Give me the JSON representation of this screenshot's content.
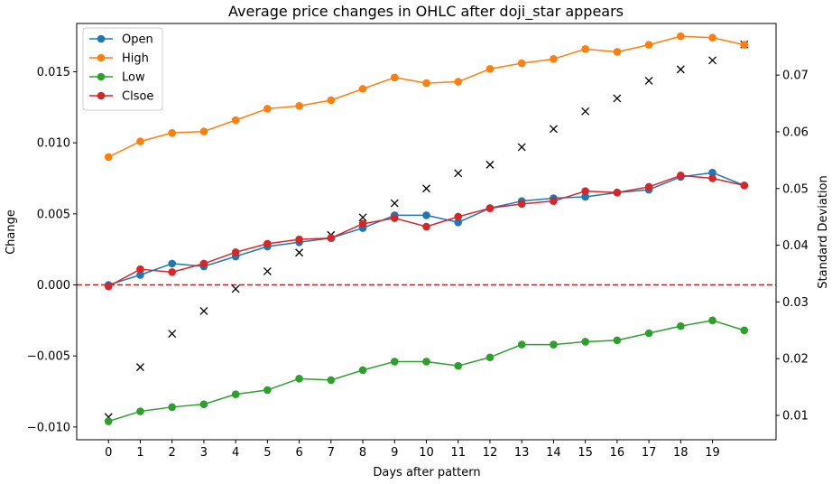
{
  "chart_data": {
    "type": "line",
    "title": "Average price changes in OHLC after doji_star appears",
    "xlabel": "Days after pattern",
    "ylabel": "Change",
    "y2label": "Standard Deviation",
    "x": [
      0,
      1,
      2,
      3,
      4,
      5,
      6,
      7,
      8,
      9,
      10,
      11,
      12,
      13,
      14,
      15,
      16,
      17,
      18,
      19,
      20
    ],
    "x_tick_labels": [
      "0",
      "1",
      "2",
      "3",
      "4",
      "5",
      "6",
      "7",
      "8",
      "9",
      "10",
      "11",
      "12",
      "13",
      "14",
      "15",
      "16",
      "17",
      "18",
      "19"
    ],
    "xlim": [
      -1,
      21
    ],
    "ylim": [
      -0.0109,
      0.0184
    ],
    "y_ticks": [
      "−0.010",
      "−0.005",
      "0.000",
      "0.005",
      "0.010",
      "0.015"
    ],
    "y2lim": [
      0.0057,
      0.0791
    ],
    "y2_ticks": [
      "0.01",
      "0.02",
      "0.03",
      "0.04",
      "0.05",
      "0.06",
      "0.07"
    ],
    "legend_position": "top-left",
    "grid": false,
    "zero_line": {
      "value": 0,
      "color": "#ff0000",
      "style": "dashed"
    },
    "series": [
      {
        "name": "Open",
        "color": "#1f77b4",
        "values": [
          0.0,
          0.0007,
          0.0015,
          0.0013,
          0.002,
          0.0027,
          0.003,
          0.0033,
          0.004,
          0.0049,
          0.0049,
          0.0044,
          0.0054,
          0.0059,
          0.0061,
          0.0062,
          0.0065,
          0.0067,
          0.0076,
          0.0079,
          0.007
        ]
      },
      {
        "name": "High",
        "color": "#ff7f0e",
        "values": [
          0.009,
          0.0101,
          0.0107,
          0.0108,
          0.0116,
          0.0124,
          0.0126,
          0.013,
          0.0138,
          0.0146,
          0.0142,
          0.0143,
          0.0152,
          0.0156,
          0.0159,
          0.0166,
          0.0164,
          0.0169,
          0.0175,
          0.0174,
          0.0169
        ]
      },
      {
        "name": "Low",
        "color": "#2ca02c",
        "values": [
          -0.0096,
          -0.0089,
          -0.0086,
          -0.0084,
          -0.0077,
          -0.0074,
          -0.0066,
          -0.0067,
          -0.006,
          -0.0054,
          -0.0054,
          -0.0057,
          -0.0051,
          -0.0042,
          -0.0042,
          -0.004,
          -0.0039,
          -0.0034,
          -0.0029,
          -0.0025,
          -0.0032
        ]
      },
      {
        "name": "Clsoe",
        "color": "#d62728",
        "values": [
          -0.0001,
          0.0011,
          0.0009,
          0.0015,
          0.0023,
          0.0029,
          0.0032,
          0.0033,
          0.0043,
          0.0047,
          0.0041,
          0.0048,
          0.0054,
          0.0057,
          0.0059,
          0.0066,
          0.0065,
          0.0069,
          0.0077,
          0.0075,
          0.007
        ]
      }
    ],
    "std_series": {
      "axis": "right",
      "marker": "x",
      "color": "#000000",
      "values": [
        0.0097,
        0.0185,
        0.0244,
        0.0284,
        0.0323,
        0.0354,
        0.0387,
        0.0418,
        0.0449,
        0.0474,
        0.05,
        0.0527,
        0.0542,
        0.0573,
        0.0605,
        0.0636,
        0.0659,
        0.069,
        0.071,
        0.0726,
        0.0754
      ]
    }
  }
}
